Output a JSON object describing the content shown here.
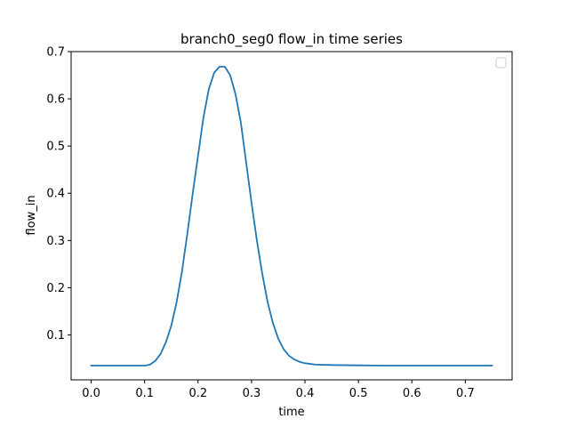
{
  "chart_data": {
    "type": "line",
    "title": "branch0_seg0 flow_in time series",
    "xlabel": "time",
    "ylabel": "flow_in",
    "xlim": [
      -0.0375,
      0.7875
    ],
    "ylim": [
      0.0048,
      0.7
    ],
    "xticks": [
      0.0,
      0.1,
      0.2,
      0.3,
      0.4,
      0.5,
      0.6,
      0.7
    ],
    "xtick_labels": [
      "0.0",
      "0.1",
      "0.2",
      "0.3",
      "0.4",
      "0.5",
      "0.6",
      "0.7"
    ],
    "yticks": [
      0.1,
      0.2,
      0.3,
      0.4,
      0.5,
      0.6,
      0.7
    ],
    "ytick_labels": [
      "0.1",
      "0.2",
      "0.3",
      "0.4",
      "0.5",
      "0.6",
      "0.7"
    ],
    "grid": false,
    "legend": "top-right",
    "line_color": "#1f77b4",
    "series": [
      {
        "x": [
          0.0,
          0.05,
          0.1,
          0.11,
          0.12,
          0.13,
          0.14,
          0.15,
          0.16,
          0.17,
          0.18,
          0.19,
          0.2,
          0.21,
          0.22,
          0.23,
          0.24,
          0.25,
          0.26,
          0.27,
          0.28,
          0.29,
          0.3,
          0.31,
          0.32,
          0.33,
          0.34,
          0.35,
          0.36,
          0.37,
          0.38,
          0.39,
          0.4,
          0.42,
          0.44,
          0.46,
          0.5,
          0.55,
          0.6,
          0.65,
          0.7,
          0.75
        ],
        "y": [
          0.035,
          0.035,
          0.035,
          0.037,
          0.045,
          0.06,
          0.085,
          0.12,
          0.17,
          0.235,
          0.315,
          0.4,
          0.48,
          0.56,
          0.62,
          0.655,
          0.668,
          0.668,
          0.65,
          0.61,
          0.55,
          0.465,
          0.38,
          0.3,
          0.23,
          0.17,
          0.125,
          0.092,
          0.07,
          0.056,
          0.048,
          0.043,
          0.04,
          0.037,
          0.0365,
          0.036,
          0.0355,
          0.035,
          0.035,
          0.035,
          0.035,
          0.035
        ]
      }
    ]
  }
}
